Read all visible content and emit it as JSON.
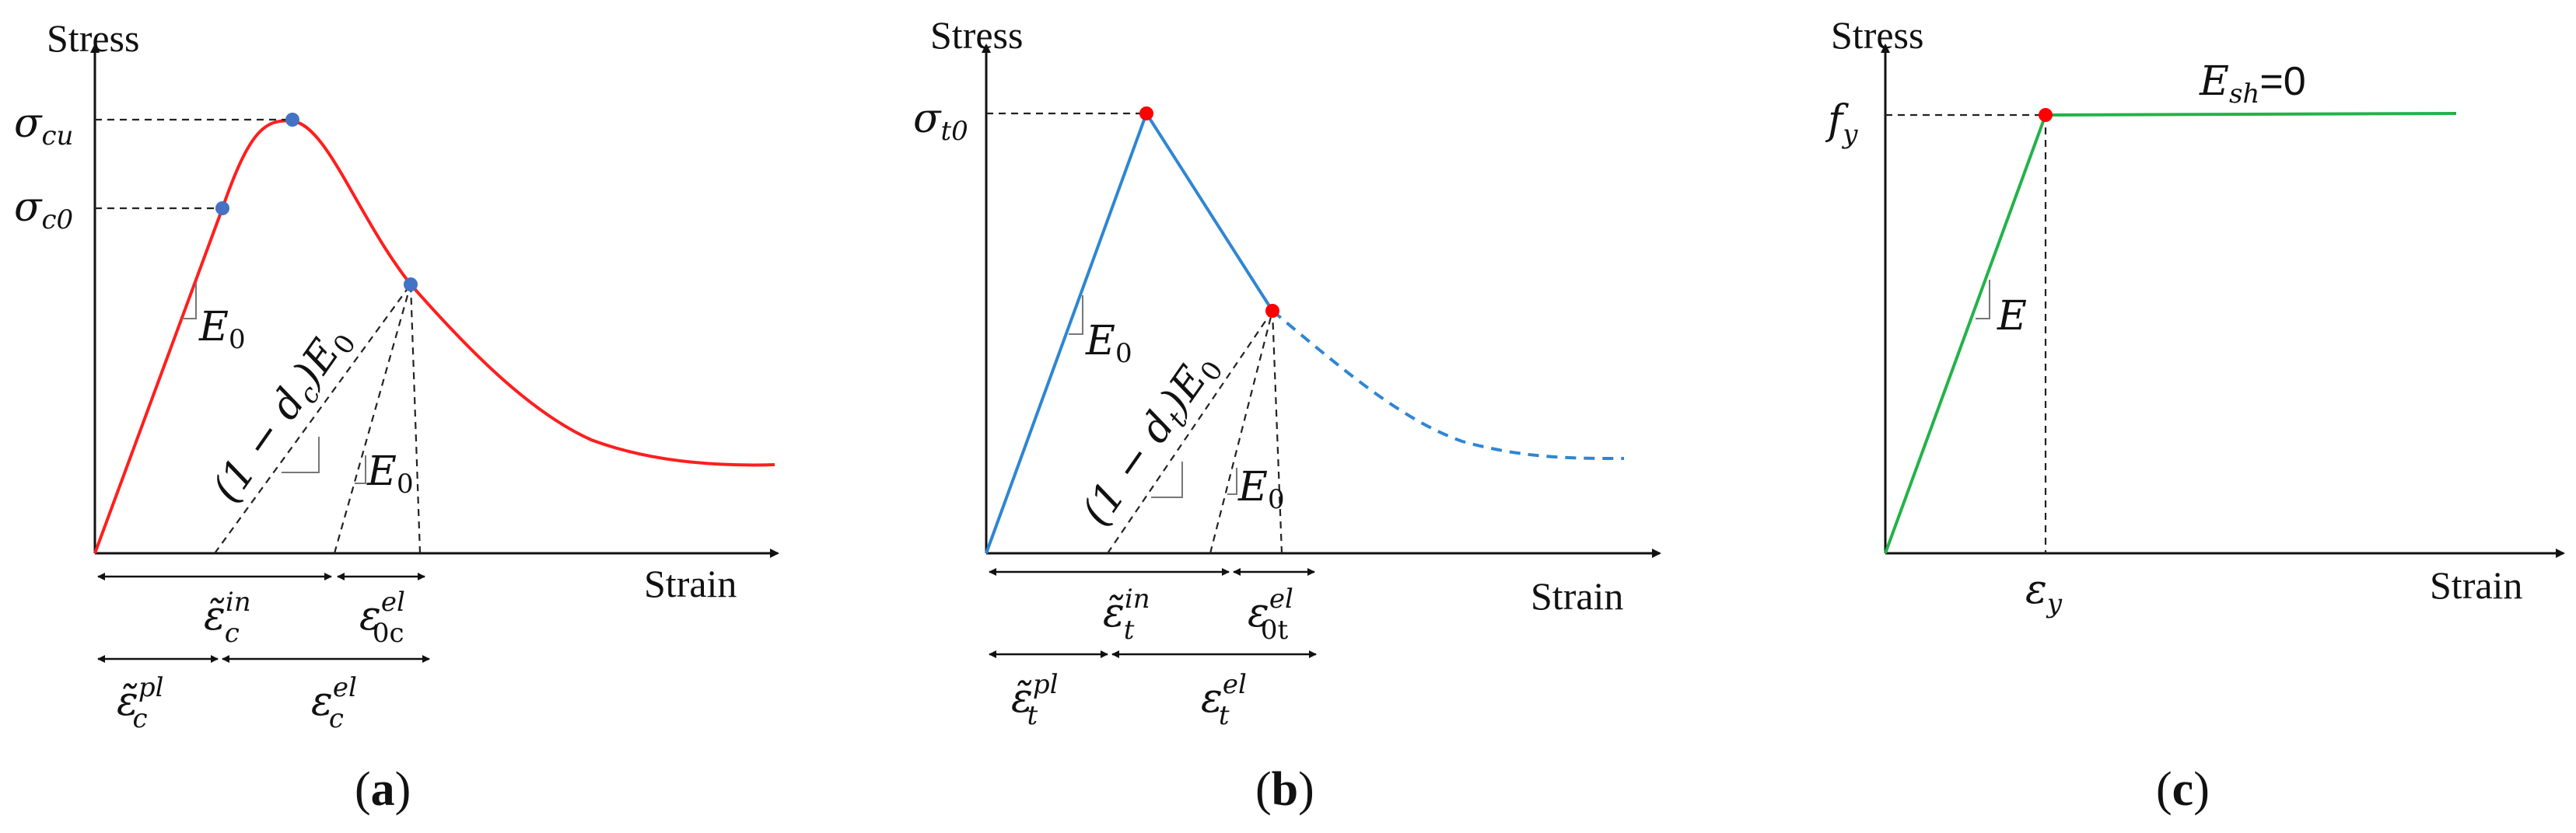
{
  "colors": {
    "concrete_comp": "#ff1e1e",
    "concrete_tens": "#2f86d2",
    "steel": "#23b24a",
    "comp_point": "#4472c4",
    "tens_point": "#ff0000",
    "steel_point": "#ff0000"
  },
  "panel_a": {
    "y_axis": "Stress",
    "x_axis": "Strain",
    "sigma_cu_main": "σ",
    "sigma_cu_sub": "cu",
    "sigma_c0_main": "σ",
    "sigma_c0_sub": "c0",
    "E0_main": "E",
    "E0_sub": "0",
    "E0b_main": "E",
    "E0b_sub": "0",
    "damaged": "(1 − d",
    "damaged_sub": "c",
    "damaged_close": ")E",
    "damaged_sub2": "0",
    "eps_in_main": "ε̃",
    "eps_in_sub": "c",
    "eps_in_sup": "in",
    "eps_0el_main": "ε",
    "eps_0el_sub": "0c",
    "eps_0el_sup": "el",
    "eps_pl_main": "ε̃",
    "eps_pl_sub": "c",
    "eps_pl_sup": "pl",
    "eps_el_main": "ε",
    "eps_el_sub": "c",
    "eps_el_sup": "el",
    "caption_open": "(",
    "caption_letter": "a",
    "caption_close": ")"
  },
  "panel_b": {
    "y_axis": "Stress",
    "x_axis": "Strain",
    "sigma_t0_main": "σ",
    "sigma_t0_sub": "t0",
    "E0_main": "E",
    "E0_sub": "0",
    "E0b_main": "E",
    "E0b_sub": "0",
    "damaged": "(1 − d",
    "damaged_sub": "t",
    "damaged_close": ")E",
    "damaged_sub2": "0",
    "eps_in_main": "ε̃",
    "eps_in_sub": "t",
    "eps_in_sup": "in",
    "eps_0el_main": "ε",
    "eps_0el_sub": "0t",
    "eps_0el_sup": "el",
    "eps_pl_main": "ε̃",
    "eps_pl_sub": "t",
    "eps_pl_sup": "pl",
    "eps_el_main": "ε",
    "eps_el_sub": "t",
    "eps_el_sup": "el",
    "caption_open": "(",
    "caption_letter": "b",
    "caption_close": ")"
  },
  "panel_c": {
    "y_axis": "Stress",
    "x_axis": "Strain",
    "fy_main": "f",
    "fy_sub": "y",
    "E_label": "E",
    "Esh_main": "E",
    "Esh_sub": "sh",
    "Esh_value": "=0",
    "eps_y_main": "ε",
    "eps_y_sub": "y",
    "caption_open": "(",
    "caption_letter": "c",
    "caption_close": ")"
  }
}
